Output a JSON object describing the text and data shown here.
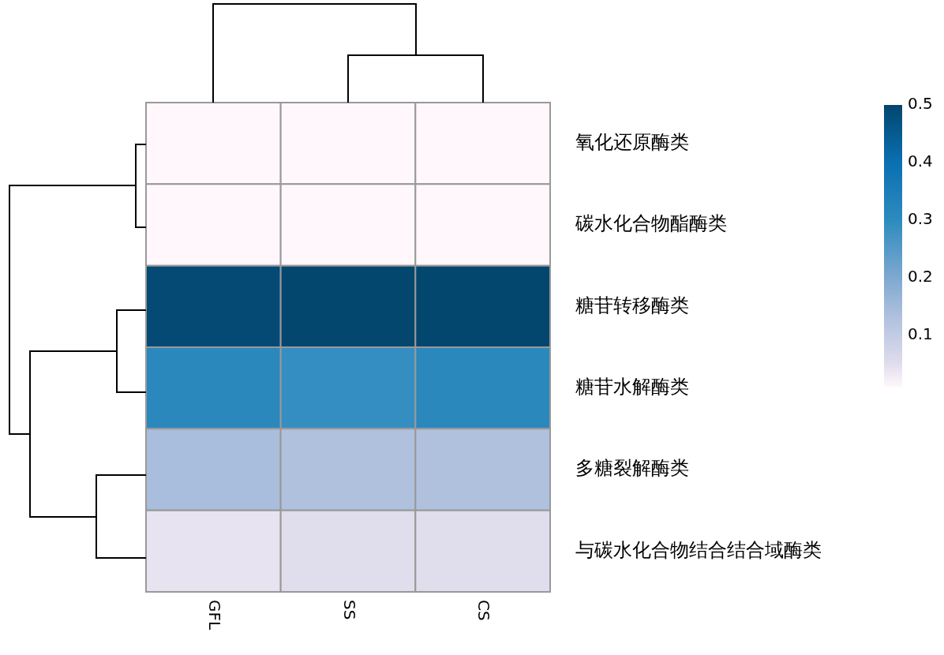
{
  "chart_data": {
    "type": "heatmap",
    "categories": [
      "GFL",
      "SS",
      "CS"
    ],
    "y_categories": [
      "氧化还原酶类",
      "碳水化合物酯酶类",
      "糖苷转移酶类",
      "糖苷水解酶类",
      "多糖裂解酶类",
      "与碳水化合物结合结合域酶类"
    ],
    "cells": [
      [
        0.01,
        0.01,
        0.01
      ],
      [
        0.01,
        0.01,
        0.01
      ],
      [
        0.49,
        0.5,
        0.5
      ],
      [
        0.31,
        0.29,
        0.31
      ],
      [
        0.14,
        0.13,
        0.13
      ],
      [
        0.04,
        0.05,
        0.05
      ]
    ],
    "clim": [
      0.01,
      0.5
    ],
    "cticks": [
      0.1,
      0.2,
      0.3,
      0.4,
      0.5
    ]
  }
}
